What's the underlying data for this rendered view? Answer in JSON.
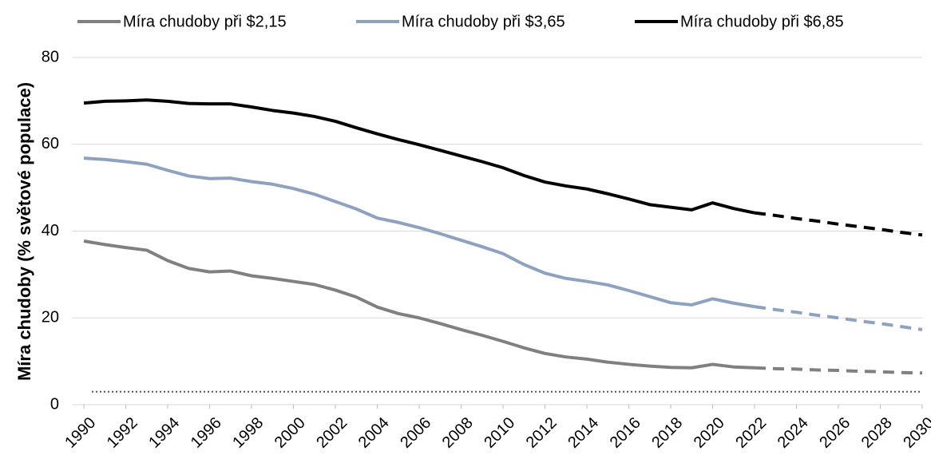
{
  "chart_data": {
    "type": "line",
    "ylabel": "Míra chudoby (% světové populace)",
    "x": [
      1990,
      1991,
      1992,
      1993,
      1994,
      1995,
      1996,
      1997,
      1998,
      1999,
      2000,
      2001,
      2002,
      2003,
      2004,
      2005,
      2006,
      2007,
      2008,
      2009,
      2010,
      2011,
      2012,
      2013,
      2014,
      2015,
      2016,
      2017,
      2018,
      2019,
      2020,
      2021,
      2022,
      2023,
      2024,
      2025,
      2026,
      2027,
      2028,
      2029,
      2030
    ],
    "series": [
      {
        "name": "Míra chudoby při $2,15",
        "color": "#808080",
        "values": [
          37.7,
          36.9,
          36.2,
          35.6,
          33.2,
          31.4,
          30.6,
          30.8,
          29.7,
          29.1,
          28.4,
          27.7,
          26.4,
          24.8,
          22.5,
          21.0,
          20.0,
          18.7,
          17.3,
          16.0,
          14.6,
          13.1,
          11.8,
          11.0,
          10.5,
          9.8,
          9.3,
          8.9,
          8.6,
          8.5,
          9.3,
          8.7,
          8.5,
          8.3,
          8.2,
          8.0,
          7.9,
          7.7,
          7.6,
          7.4,
          7.3
        ]
      },
      {
        "name": "Míra chudoby při $3,65",
        "color": "#8ea2bf",
        "values": [
          56.8,
          56.5,
          56.0,
          55.4,
          54.0,
          52.7,
          52.1,
          52.2,
          51.4,
          50.8,
          49.8,
          48.5,
          46.8,
          45.1,
          43.0,
          42.0,
          40.8,
          39.4,
          37.9,
          36.4,
          34.8,
          32.3,
          30.3,
          29.1,
          28.4,
          27.6,
          26.3,
          24.9,
          23.5,
          23.0,
          24.4,
          23.4,
          22.6,
          21.9,
          21.3,
          20.6,
          20.0,
          19.3,
          18.7,
          18.0,
          17.3
        ]
      },
      {
        "name": "Míra chudoby při $6,85",
        "color": "#000000",
        "values": [
          69.5,
          69.9,
          70.0,
          70.2,
          69.9,
          69.4,
          69.3,
          69.3,
          68.6,
          67.8,
          67.2,
          66.4,
          65.3,
          63.8,
          62.4,
          61.1,
          59.9,
          58.6,
          57.3,
          56.0,
          54.6,
          52.8,
          51.3,
          50.4,
          49.7,
          48.6,
          47.4,
          46.1,
          45.5,
          44.9,
          46.5,
          45.2,
          44.2,
          43.6,
          42.9,
          42.3,
          41.6,
          41.0,
          40.4,
          39.7,
          39.1
        ]
      }
    ],
    "dashed_after": 2022,
    "hline": 3,
    "xlim": [
      1990,
      2030
    ],
    "xticks": [
      1990,
      1992,
      1994,
      1996,
      1998,
      2000,
      2002,
      2004,
      2006,
      2008,
      2010,
      2012,
      2014,
      2016,
      2018,
      2020,
      2022,
      2024,
      2026,
      2028,
      2030
    ],
    "ylim": [
      0,
      80
    ],
    "yticks": [
      0,
      20,
      40,
      60,
      80
    ],
    "grid": true,
    "legend": "top"
  }
}
